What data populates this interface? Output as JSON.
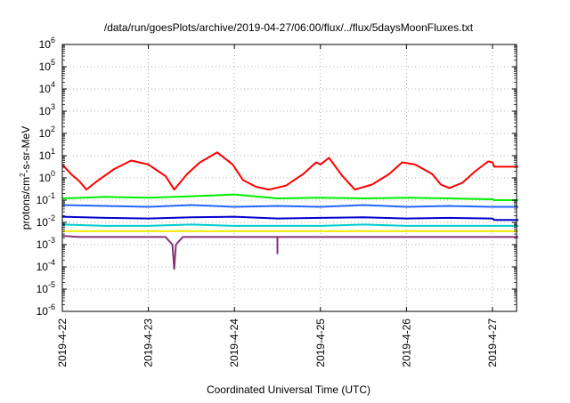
{
  "chart_data": {
    "type": "line",
    "title": "/data/run/goesPlots/archive/2019-04-27/06:00/flux/../flux/5daysMoonFluxes.txt",
    "xlabel": "Coordinated Universal Time (UTC)",
    "ylabel": {
      "prefix": "protons/cm",
      "sup": "2",
      "suffix": "-s-sr-MeV"
    },
    "yscale": "log",
    "ylim_exp": [
      -6,
      6
    ],
    "ytick_exponents": [
      -6,
      -5,
      -4,
      -3,
      -2,
      -1,
      0,
      1,
      2,
      3,
      4,
      5,
      6
    ],
    "ytick_base": "10",
    "xlim": [
      0,
      5.28
    ],
    "xticks": [
      {
        "t": 0,
        "label": "2019-4-22"
      },
      {
        "t": 1,
        "label": "2019-4-23"
      },
      {
        "t": 2,
        "label": "2019-4-24"
      },
      {
        "t": 3,
        "label": "2019-4-25"
      },
      {
        "t": 4,
        "label": "2019-4-26"
      },
      {
        "t": 5,
        "label": "2019-4-27"
      }
    ],
    "grid": true,
    "series": [
      {
        "color": "#ff0000",
        "x": [
          0,
          0.1,
          0.2,
          0.28,
          0.4,
          0.6,
          0.8,
          1.0,
          1.2,
          1.3,
          1.45,
          1.6,
          1.8,
          1.98,
          2.1,
          2.25,
          2.4,
          2.6,
          2.8,
          2.95,
          3.0,
          3.1,
          3.25,
          3.4,
          3.6,
          3.8,
          3.95,
          4.1,
          4.3,
          4.4,
          4.5,
          4.65,
          4.8,
          4.95,
          5.0,
          5.02,
          5.3
        ],
        "y": [
          4,
          1.5,
          0.7,
          0.3,
          0.7,
          2.5,
          6,
          4,
          1.2,
          0.3,
          1.5,
          5,
          14,
          4,
          0.8,
          0.4,
          0.3,
          0.45,
          1.5,
          5,
          4,
          8,
          1.3,
          0.3,
          0.5,
          1.5,
          5,
          4,
          1.5,
          0.5,
          0.35,
          0.6,
          2,
          5.5,
          5,
          3.2,
          3.2
        ]
      },
      {
        "color": "#00ee00",
        "x": [
          0,
          0.25,
          0.5,
          1.0,
          1.5,
          2.0,
          2.5,
          3.0,
          3.5,
          4.0,
          4.5,
          5.0,
          5.02,
          5.3
        ],
        "y": [
          0.12,
          0.13,
          0.14,
          0.13,
          0.15,
          0.18,
          0.12,
          0.13,
          0.12,
          0.13,
          0.12,
          0.11,
          0.1,
          0.1
        ]
      },
      {
        "color": "#2266ff",
        "x": [
          0,
          0.5,
          1.0,
          1.5,
          2.0,
          2.5,
          3.0,
          3.5,
          4.0,
          4.5,
          5.0,
          5.02,
          5.3
        ],
        "y": [
          0.06,
          0.055,
          0.05,
          0.06,
          0.05,
          0.055,
          0.05,
          0.06,
          0.05,
          0.055,
          0.05,
          0.05,
          0.05
        ]
      },
      {
        "color": "#0000cc",
        "x": [
          0,
          0.5,
          1.0,
          1.5,
          2.0,
          2.5,
          3.0,
          3.5,
          4.0,
          4.5,
          5.0,
          5.02,
          5.3
        ],
        "y": [
          0.018,
          0.016,
          0.015,
          0.017,
          0.018,
          0.015,
          0.016,
          0.017,
          0.015,
          0.016,
          0.015,
          0.013,
          0.013
        ]
      },
      {
        "color": "#00cccc",
        "x": [
          0,
          0.5,
          1.0,
          1.5,
          2.0,
          2.5,
          3.0,
          3.5,
          4.0,
          4.5,
          5.0,
          5.02,
          5.3
        ],
        "y": [
          0.008,
          0.007,
          0.007,
          0.008,
          0.007,
          0.007,
          0.007,
          0.008,
          0.007,
          0.007,
          0.007,
          0.007,
          0.007
        ]
      },
      {
        "color": "#eeee00",
        "x": [
          0,
          1.0,
          2.0,
          3.0,
          4.0,
          5.0,
          5.3
        ],
        "y": [
          0.004,
          0.004,
          0.004,
          0.004,
          0.004,
          0.004,
          0.004
        ]
      },
      {
        "color": "#883377",
        "x": [
          0,
          0.2,
          0.5,
          1.0,
          1.2,
          1.28,
          1.3,
          1.32,
          1.4,
          1.6,
          1.8,
          2.0,
          2.5,
          2.5,
          2.5,
          3.0,
          3.5,
          4.0,
          4.5,
          5.0,
          5.3
        ],
        "y": [
          0.0025,
          0.0022,
          0.0022,
          0.0022,
          0.0022,
          0.001,
          8e-05,
          0.001,
          0.0022,
          0.0022,
          0.0022,
          0.0022,
          0.0022,
          0.0004,
          0.0022,
          0.0022,
          0.0022,
          0.0022,
          0.0022,
          0.0022,
          0.0022
        ]
      }
    ]
  }
}
